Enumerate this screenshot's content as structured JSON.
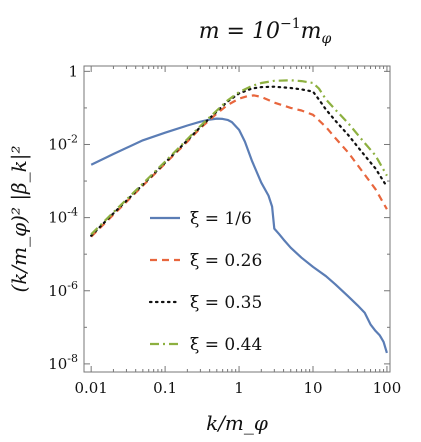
{
  "chart_data": {
    "type": "line",
    "title": "m = 10⁻¹m_φ",
    "title_parts": {
      "main": "m = 10",
      "exp": "−1",
      "tail": "m",
      "sub": "φ"
    },
    "xlabel": "k/m_φ",
    "ylabel": "(k/m_φ)² |β_k|²",
    "x_scale": "log",
    "y_scale": "log",
    "xlim": [
      0.008,
      110
    ],
    "ylim": [
      6e-09,
      1.4
    ],
    "x_ticks": [
      {
        "value": 0.01,
        "label": "0.01"
      },
      {
        "value": 0.1,
        "label": "0.1"
      },
      {
        "value": 1,
        "label": "1"
      },
      {
        "value": 10,
        "label": "10"
      },
      {
        "value": 100,
        "label": "100"
      }
    ],
    "y_ticks": [
      {
        "value": 1e-08,
        "base": "10",
        "exp": "-8"
      },
      {
        "value": 1e-06,
        "base": "10",
        "exp": "-6"
      },
      {
        "value": 0.0001,
        "base": "10",
        "exp": "-4"
      },
      {
        "value": 0.01,
        "base": "10",
        "exp": "-2"
      },
      {
        "value": 1,
        "base": "1",
        "exp": ""
      }
    ],
    "grid": false,
    "legend_position": "lower-left",
    "series": [
      {
        "name": "ξ = 1/6",
        "color": "#5b7db5",
        "dash": "solid",
        "x": [
          0.01,
          0.02,
          0.05,
          0.1,
          0.2,
          0.3,
          0.4,
          0.5,
          0.6,
          0.7,
          0.8,
          1.0,
          1.2,
          1.5,
          2.0,
          2.5,
          2.8,
          3.0,
          3.5,
          4.0,
          5.0,
          7.0,
          10.0,
          15.0,
          20.0,
          30.0,
          40.0,
          50.0,
          60.0,
          70.0,
          80.0,
          90.0,
          100.0
        ],
        "y": [
          0.0028,
          0.0055,
          0.013,
          0.021,
          0.033,
          0.042,
          0.048,
          0.051,
          0.05,
          0.047,
          0.041,
          0.025,
          0.012,
          0.0035,
          0.0009,
          0.0004,
          0.0002,
          5e-05,
          3.5e-05,
          2.5e-05,
          1.5e-05,
          8e-06,
          4.5e-06,
          2.5e-06,
          1.5e-06,
          7e-07,
          4e-07,
          2.5e-07,
          1.2e-07,
          8e-08,
          6e-08,
          4e-08,
          2e-08
        ]
      },
      {
        "name": "ξ = 0.26",
        "color": "#e8663d",
        "dash": "dashed",
        "x": [
          0.01,
          0.02,
          0.05,
          0.1,
          0.2,
          0.3,
          0.5,
          0.7,
          1.0,
          1.3,
          1.6,
          2.0,
          3.0,
          5.0,
          7.0,
          10.0,
          15.0,
          20.0,
          30.0,
          50.0,
          70.0,
          100.0
        ],
        "y": [
          3e-05,
          0.00012,
          0.00075,
          0.003,
          0.012,
          0.028,
          0.07,
          0.12,
          0.18,
          0.21,
          0.22,
          0.2,
          0.14,
          0.1,
          0.085,
          0.065,
          0.03,
          0.015,
          0.006,
          0.0015,
          0.0006,
          0.00017
        ]
      },
      {
        "name": "ξ = 0.35",
        "color": "#111111",
        "dash": "dotted",
        "x": [
          0.01,
          0.02,
          0.05,
          0.1,
          0.2,
          0.3,
          0.5,
          0.7,
          1.0,
          1.5,
          2.0,
          3.0,
          5.0,
          7.0,
          10.0,
          12.0,
          15.0,
          20.0,
          30.0,
          50.0,
          70.0,
          100.0
        ],
        "y": [
          3.2e-05,
          0.00013,
          0.0008,
          0.0032,
          0.013,
          0.03,
          0.08,
          0.15,
          0.25,
          0.34,
          0.37,
          0.38,
          0.35,
          0.32,
          0.28,
          0.17,
          0.09,
          0.045,
          0.018,
          0.005,
          0.0022,
          0.0007
        ]
      },
      {
        "name": "ξ = 0.44",
        "color": "#8db040",
        "dash": "dashdot",
        "x": [
          0.01,
          0.02,
          0.05,
          0.1,
          0.2,
          0.3,
          0.5,
          0.7,
          1.0,
          1.5,
          2.0,
          3.0,
          5.0,
          7.0,
          10.0,
          12.0,
          15.0,
          20.0,
          30.0,
          50.0,
          70.0,
          100.0
        ],
        "y": [
          3.5e-05,
          0.00014,
          0.00085,
          0.0034,
          0.014,
          0.032,
          0.085,
          0.16,
          0.27,
          0.4,
          0.48,
          0.55,
          0.57,
          0.54,
          0.48,
          0.34,
          0.17,
          0.09,
          0.038,
          0.011,
          0.005,
          0.0014
        ]
      }
    ]
  }
}
